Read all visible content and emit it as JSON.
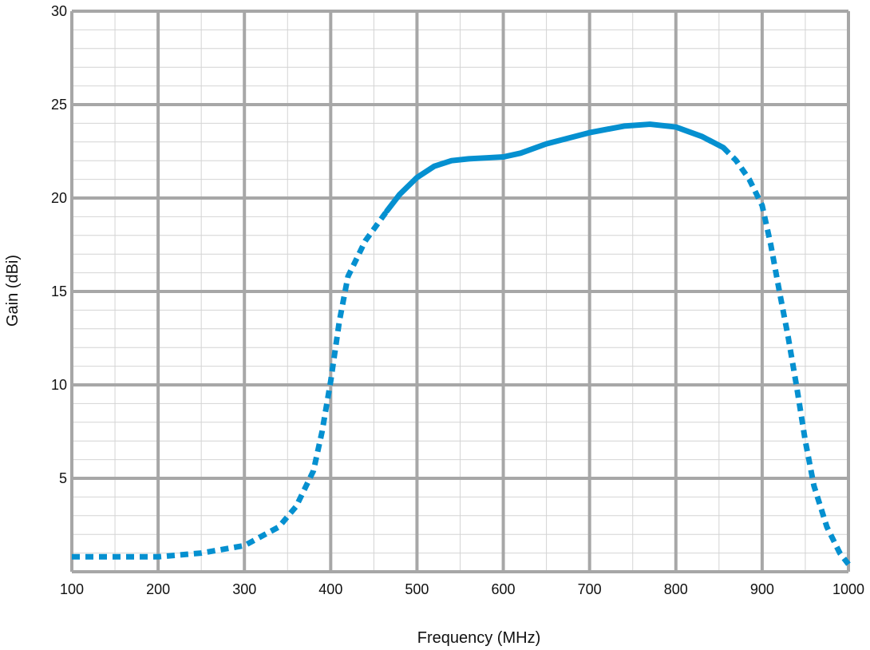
{
  "chart_data": {
    "type": "line",
    "xlabel": "Frequency (MHz)",
    "ylabel": "Gain (dBi)",
    "xlim": [
      100,
      1000
    ],
    "ylim": [
      0,
      30
    ],
    "x_ticks": [
      100,
      200,
      300,
      400,
      500,
      600,
      700,
      800,
      900,
      1000
    ],
    "y_ticks": [
      5,
      10,
      15,
      20,
      25,
      30
    ],
    "grid": true,
    "line_color": "#0590d0",
    "grid_major_color": "#a7a7a7",
    "grid_minor_color": "#d4d4d4",
    "series": [
      {
        "style": "dashed",
        "x": [
          100,
          150,
          200,
          250,
          300,
          340,
          360,
          380,
          390,
          400,
          410,
          420,
          440,
          465
        ],
        "y": [
          0.8,
          0.8,
          0.8,
          1.0,
          1.4,
          2.4,
          3.5,
          5.4,
          7.5,
          10.2,
          13.4,
          15.8,
          17.7,
          19.3
        ]
      },
      {
        "style": "solid",
        "x": [
          465,
          480,
          500,
          520,
          540,
          560,
          580,
          600,
          620,
          650,
          700,
          740,
          770,
          800,
          830,
          855
        ],
        "y": [
          19.3,
          20.2,
          21.1,
          21.7,
          22.0,
          22.1,
          22.15,
          22.2,
          22.4,
          22.9,
          23.5,
          23.85,
          23.95,
          23.8,
          23.3,
          22.7
        ]
      },
      {
        "style": "dashed",
        "x": [
          855,
          870,
          885,
          900,
          910,
          920,
          930,
          940,
          950,
          960,
          975,
          990,
          1000
        ],
        "y": [
          22.7,
          22.0,
          21.0,
          19.6,
          17.5,
          15.0,
          12.6,
          9.9,
          7.0,
          4.6,
          2.4,
          1.0,
          0.4
        ]
      }
    ]
  }
}
